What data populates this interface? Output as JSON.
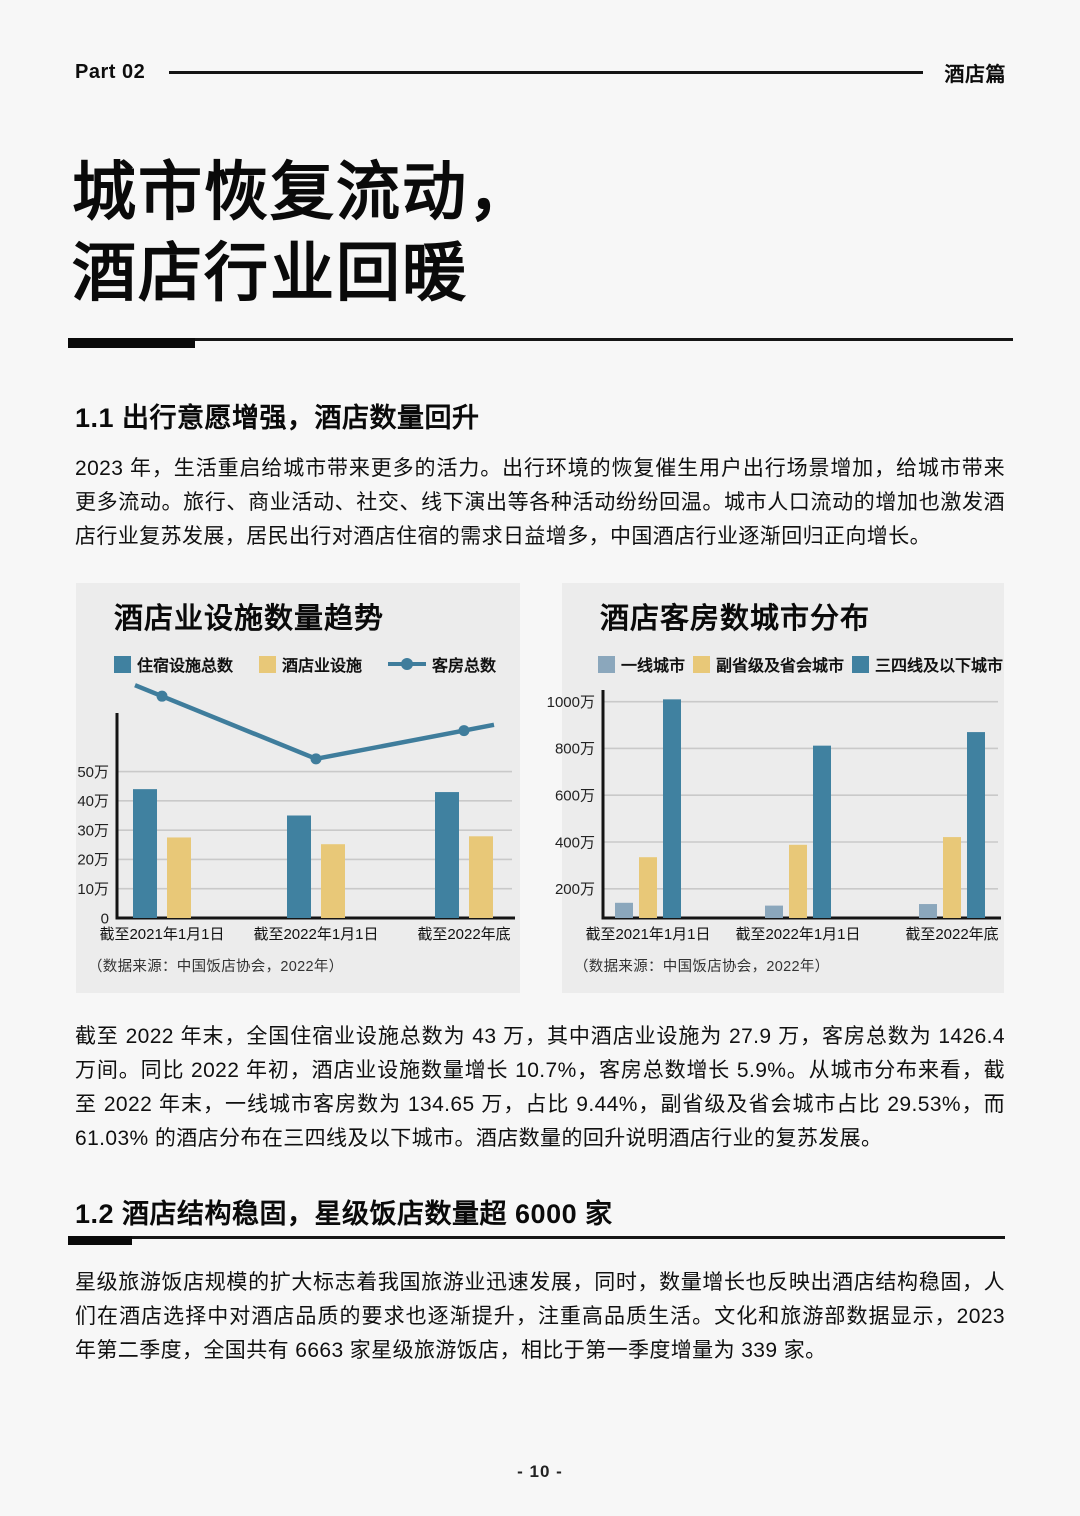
{
  "header": {
    "part_label": "Part 02",
    "section_label": "酒店篇"
  },
  "title": {
    "line1": "城市恢复流动，",
    "line2": "酒店行业回暖"
  },
  "section_1_1": {
    "heading": "1.1 出行意愿增强，酒店数量回升",
    "paragraph": "2023 年，生活重启给城市带来更多的活力。出行环境的恢复催生用户出行场景增加，给城市带来更多流动。旅行、商业活动、社交、线下演出等各种活动纷纷回温。城市人口流动的增加也激发酒店行业复苏发展，居民出行对酒店住宿的需求日益增多，中国酒店行业逐渐回归正向增长。"
  },
  "analysis_paragraph": "截至 2022 年末，全国住宿业设施总数为 43 万，其中酒店业设施为 27.9 万，客房总数为 1426.4 万间。同比 2022 年初，酒店业设施数量增长 10.7%，客房总数增长 5.9%。从城市分布来看，截至 2022 年末，一线城市客房数为 134.65 万，占比 9.44%，副省级及省会城市占比 29.53%，而 61.03% 的酒店分布在三四线及以下城市。酒店数量的回升说明酒店行业的复苏发展。",
  "section_1_2": {
    "heading": "1.2 酒店结构稳固，星级饭店数量超 6000 家",
    "paragraph": "星级旅游饭店规模的扩大标志着我国旅游业迅速发展，同时，数量增长也反映出酒店结构稳固，人们在酒店选择中对酒店品质的要求也逐渐提升，注重高品质生活。文化和旅游部数据显示，2023 年第二季度，全国共有 6663 家星级旅游饭店，相比于第一季度增量为 339 家。",
    "highlight_hotels_total": "6663",
    "highlight_quarter_increase": "339"
  },
  "colors": {
    "teal": "#4081a0",
    "yellow": "#e8c878",
    "light_blue": "#8ba7bc",
    "card_bg": "#ececec",
    "page_bg": "#f7f7f7"
  },
  "chart_data": [
    {
      "type": "bar",
      "title": "酒店业设施数量趋势",
      "categories": [
        "截至2021年1月1日",
        "截至2022年1月1日",
        "截至2022年底"
      ],
      "series": [
        {
          "name": "住宿设施总数",
          "kind": "bar",
          "color": "#4081a0",
          "unit": "万",
          "values": [
            44,
            35,
            43
          ]
        },
        {
          "name": "酒店业设施",
          "kind": "bar",
          "color": "#e8c878",
          "unit": "万",
          "values": [
            27.5,
            25.2,
            27.9
          ]
        },
        {
          "name": "客房总数",
          "kind": "line",
          "color": "#3f7d9c",
          "unit": "万间",
          "values": [
            1523,
            1347,
            1426.4
          ]
        }
      ],
      "yticks": [
        50,
        40,
        30,
        20,
        10,
        0
      ],
      "ytick_suffix": "万",
      "ylim": [
        0,
        70
      ],
      "y2lim": [
        900,
        1560
      ],
      "grid": true,
      "legend_position": "top",
      "source": "（数据来源：中国饭店协会，2022年）"
    },
    {
      "type": "bar",
      "title": "酒店客房数城市分布",
      "categories": [
        "截至2021年1月1日",
        "截至2022年1月1日",
        "截至2022年底"
      ],
      "series": [
        {
          "name": "一线城市",
          "kind": "bar",
          "color": "#8ba7bc",
          "unit": "万",
          "values": [
            140,
            128,
            134.65
          ]
        },
        {
          "name": "副省级及省会城市",
          "kind": "bar",
          "color": "#e8c878",
          "unit": "万",
          "values": [
            335,
            388,
            421
          ]
        },
        {
          "name": "三四线及以下城市",
          "kind": "bar",
          "color": "#4081a0",
          "unit": "万",
          "values": [
            1010,
            812,
            870
          ]
        }
      ],
      "yticks": [
        1000,
        800,
        600,
        400,
        200
      ],
      "ytick_suffix": "万",
      "ylim": [
        75,
        1050
      ],
      "grid": true,
      "legend_position": "top",
      "source": "（数据来源：中国饭店协会，2022年）"
    }
  ],
  "footer": {
    "page_number": "- 10 -"
  }
}
